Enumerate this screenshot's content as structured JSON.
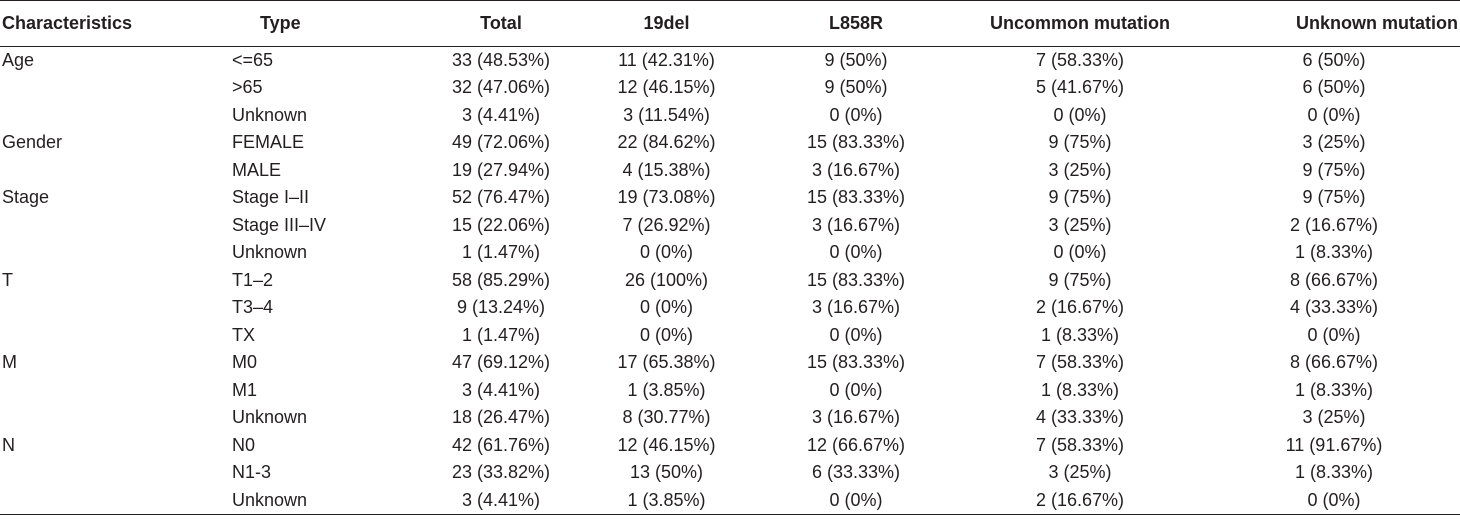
{
  "table": {
    "headers": [
      "Characteristics",
      "Type",
      "Total",
      "19del",
      "L858R",
      "Uncommon mutation",
      "Unknown mutation"
    ],
    "rows": [
      [
        "Age",
        "<=65",
        "33 (48.53%)",
        "11 (42.31%)",
        "9 (50%)",
        "7 (58.33%)",
        "6 (50%)"
      ],
      [
        "",
        ">65",
        "32 (47.06%)",
        "12 (46.15%)",
        "9 (50%)",
        "5 (41.67%)",
        "6 (50%)"
      ],
      [
        "",
        "Unknown",
        "3 (4.41%)",
        "3 (11.54%)",
        "0 (0%)",
        "0 (0%)",
        "0 (0%)"
      ],
      [
        "Gender",
        "FEMALE",
        "49 (72.06%)",
        "22 (84.62%)",
        "15 (83.33%)",
        "9 (75%)",
        "3 (25%)"
      ],
      [
        "",
        "MALE",
        "19 (27.94%)",
        "4 (15.38%)",
        "3 (16.67%)",
        "3 (25%)",
        "9 (75%)"
      ],
      [
        "Stage",
        "Stage I–II",
        "52 (76.47%)",
        "19 (73.08%)",
        "15 (83.33%)",
        "9 (75%)",
        "9 (75%)"
      ],
      [
        "",
        "Stage III–IV",
        "15 (22.06%)",
        "7 (26.92%)",
        "3 (16.67%)",
        "3 (25%)",
        "2 (16.67%)"
      ],
      [
        "",
        "Unknown",
        "1 (1.47%)",
        "0 (0%)",
        "0 (0%)",
        "0 (0%)",
        "1 (8.33%)"
      ],
      [
        "T",
        "T1–2",
        "58 (85.29%)",
        "26 (100%)",
        "15 (83.33%)",
        "9 (75%)",
        "8 (66.67%)"
      ],
      [
        "",
        "T3–4",
        "9 (13.24%)",
        "0 (0%)",
        "3 (16.67%)",
        "2 (16.67%)",
        "4 (33.33%)"
      ],
      [
        "",
        "TX",
        "1 (1.47%)",
        "0 (0%)",
        "0 (0%)",
        "1 (8.33%)",
        "0 (0%)"
      ],
      [
        "M",
        "M0",
        "47 (69.12%)",
        "17 (65.38%)",
        "15 (83.33%)",
        "7 (58.33%)",
        "8 (66.67%)"
      ],
      [
        "",
        "M1",
        "3 (4.41%)",
        "1 (3.85%)",
        "0 (0%)",
        "1 (8.33%)",
        "1 (8.33%)"
      ],
      [
        "",
        "Unknown",
        "18 (26.47%)",
        "8 (30.77%)",
        "3 (16.67%)",
        "4 (33.33%)",
        "3 (25%)"
      ],
      [
        "N",
        "N0",
        "42 (61.76%)",
        "12 (46.15%)",
        "12 (66.67%)",
        "7 (58.33%)",
        "11 (91.67%)"
      ],
      [
        "",
        "N1-3",
        "23 (33.82%)",
        "13 (50%)",
        "6 (33.33%)",
        "3 (25%)",
        "1 (8.33%)"
      ],
      [
        "",
        "Unknown",
        "3 (4.41%)",
        "1 (3.85%)",
        "0 (0%)",
        "2 (16.67%)",
        "0 (0%)"
      ]
    ]
  }
}
